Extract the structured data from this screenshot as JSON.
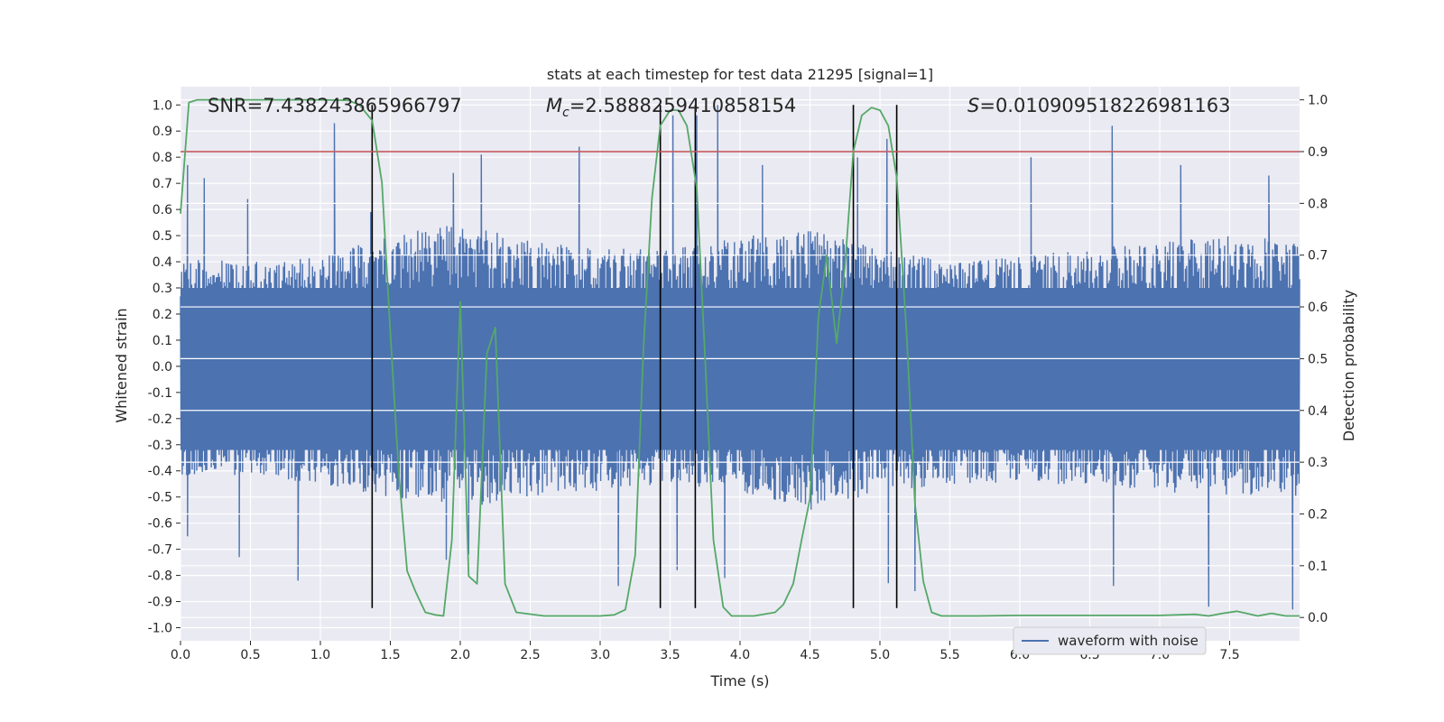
{
  "chart_data": {
    "type": "line",
    "title": "stats at each timestep for test data 21295 [signal=1]",
    "xlabel": "Time (s)",
    "ylabel": "Whitened strain",
    "y2label": "Detection probability",
    "xlim": [
      0,
      8.0
    ],
    "ylim": [
      -1.05,
      1.07
    ],
    "y2lim": [
      -0.045,
      1.0255
    ],
    "xticks": [
      "0.0",
      "0.5",
      "1.0",
      "1.5",
      "2.0",
      "2.5",
      "3.0",
      "3.5",
      "4.0",
      "4.5",
      "5.0",
      "5.5",
      "6.0",
      "6.5",
      "7.0",
      "7.5"
    ],
    "yticks": [
      "-1.0",
      "-0.9",
      "-0.8",
      "-0.7",
      "-0.6",
      "-0.5",
      "-0.4",
      "-0.3",
      "-0.2",
      "-0.1",
      "0.0",
      "0.1",
      "0.2",
      "0.3",
      "0.4",
      "0.5",
      "0.6",
      "0.7",
      "0.8",
      "0.9",
      "1.0"
    ],
    "y2ticks": [
      "0.0",
      "0.1",
      "0.2",
      "0.3",
      "0.4",
      "0.5",
      "0.6",
      "0.7",
      "0.8",
      "0.9",
      "1.0"
    ],
    "grid": true,
    "legend": {
      "placement": "lower-right",
      "entries": [
        "waveform with noise"
      ]
    },
    "annotations": {
      "snr": "SNR=7.438243865966797",
      "mc_symbol": "M",
      "mc_sub": "c",
      "mc_value": "=2.5888259410858154",
      "s_symbol": "S",
      "s_value": "=0.010909518226981163"
    },
    "threshold": {
      "value": 0.9,
      "axis": "y2",
      "color": "#c44e52"
    },
    "vlines": [
      1.37,
      3.43,
      3.68,
      4.81,
      5.12
    ],
    "strain_envelope": {
      "name": "waveform with noise",
      "color": "#4c72b0",
      "x": [
        0.0,
        0.5,
        1.0,
        1.5,
        2.0,
        2.5,
        3.0,
        3.5,
        4.0,
        4.5,
        5.0,
        5.5,
        6.0,
        6.5,
        7.0,
        7.5,
        8.0
      ],
      "typical_max": [
        0.42,
        0.4,
        0.42,
        0.5,
        0.55,
        0.48,
        0.45,
        0.45,
        0.5,
        0.52,
        0.45,
        0.4,
        0.42,
        0.45,
        0.48,
        0.5,
        0.48
      ],
      "typical_min": [
        -0.42,
        -0.42,
        -0.45,
        -0.5,
        -0.55,
        -0.5,
        -0.48,
        -0.45,
        -0.48,
        -0.55,
        -0.48,
        -0.45,
        -0.45,
        -0.45,
        -0.48,
        -0.5,
        -0.5
      ],
      "peaks": [
        {
          "t": 0.05,
          "v": 0.77
        },
        {
          "t": 0.17,
          "v": 0.72
        },
        {
          "t": 0.48,
          "v": 0.64
        },
        {
          "t": 1.1,
          "v": 0.93
        },
        {
          "t": 1.36,
          "v": 0.59
        },
        {
          "t": 1.95,
          "v": 0.74
        },
        {
          "t": 2.15,
          "v": 0.81
        },
        {
          "t": 2.85,
          "v": 0.84
        },
        {
          "t": 3.52,
          "v": 0.96
        },
        {
          "t": 3.69,
          "v": 0.96
        },
        {
          "t": 3.84,
          "v": 1.0
        },
        {
          "t": 4.16,
          "v": 0.77
        },
        {
          "t": 4.84,
          "v": 0.8
        },
        {
          "t": 5.05,
          "v": 0.87
        },
        {
          "t": 6.08,
          "v": 0.8
        },
        {
          "t": 6.66,
          "v": 0.92
        },
        {
          "t": 7.15,
          "v": 0.77
        },
        {
          "t": 7.78,
          "v": 0.73
        }
      ],
      "troughs": [
        {
          "t": 0.05,
          "v": -0.65
        },
        {
          "t": 0.42,
          "v": -0.73
        },
        {
          "t": 0.84,
          "v": -0.82
        },
        {
          "t": 1.9,
          "v": -0.74
        },
        {
          "t": 2.06,
          "v": -0.72
        },
        {
          "t": 3.13,
          "v": -0.84
        },
        {
          "t": 3.55,
          "v": -0.78
        },
        {
          "t": 3.89,
          "v": -0.81
        },
        {
          "t": 5.06,
          "v": -0.83
        },
        {
          "t": 5.25,
          "v": -0.86
        },
        {
          "t": 6.67,
          "v": -0.84
        },
        {
          "t": 7.35,
          "v": -0.92
        },
        {
          "t": 7.95,
          "v": -0.93
        }
      ]
    },
    "probability": {
      "name": "Detection probability",
      "color": "#55a868",
      "x": [
        0.0,
        0.06,
        0.12,
        0.2,
        0.4,
        0.6,
        0.8,
        1.0,
        1.2,
        1.28,
        1.37,
        1.44,
        1.5,
        1.56,
        1.62,
        1.68,
        1.75,
        1.82,
        1.88,
        1.94,
        2.0,
        2.06,
        2.12,
        2.19,
        2.25,
        2.32,
        2.4,
        2.6,
        2.8,
        3.0,
        3.1,
        3.18,
        3.25,
        3.31,
        3.37,
        3.43,
        3.5,
        3.56,
        3.62,
        3.69,
        3.75,
        3.81,
        3.88,
        3.94,
        4.0,
        4.1,
        4.25,
        4.31,
        4.38,
        4.44,
        4.5,
        4.56,
        4.62,
        4.69,
        4.75,
        4.81,
        4.87,
        4.94,
        5.0,
        5.06,
        5.12,
        5.19,
        5.25,
        5.31,
        5.37,
        5.44,
        5.5,
        5.7,
        6.0,
        6.5,
        7.0,
        7.25,
        7.35,
        7.45,
        7.55,
        7.62,
        7.7,
        7.8,
        7.9,
        8.0
      ],
      "y": [
        0.78,
        0.995,
        1.0,
        1.0,
        1.0,
        1.0,
        1.0,
        1.0,
        0.999,
        0.99,
        0.96,
        0.84,
        0.55,
        0.28,
        0.09,
        0.05,
        0.01,
        0.005,
        0.003,
        0.15,
        0.61,
        0.08,
        0.065,
        0.51,
        0.56,
        0.065,
        0.01,
        0.003,
        0.003,
        0.003,
        0.005,
        0.015,
        0.12,
        0.52,
        0.81,
        0.95,
        0.98,
        0.98,
        0.95,
        0.83,
        0.5,
        0.15,
        0.02,
        0.003,
        0.003,
        0.003,
        0.01,
        0.025,
        0.065,
        0.15,
        0.23,
        0.58,
        0.7,
        0.53,
        0.68,
        0.9,
        0.97,
        0.985,
        0.98,
        0.95,
        0.85,
        0.55,
        0.22,
        0.07,
        0.01,
        0.003,
        0.003,
        0.003,
        0.004,
        0.004,
        0.004,
        0.006,
        0.003,
        0.008,
        0.012,
        0.008,
        0.003,
        0.008,
        0.003,
        0.003
      ]
    }
  }
}
